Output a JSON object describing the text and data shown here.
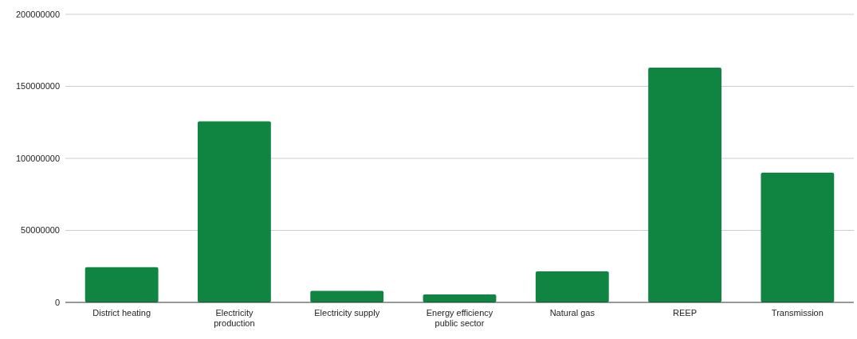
{
  "chart_data": {
    "type": "bar",
    "categories": [
      "District heating",
      "Electricity production",
      "Electricity supply",
      "Energy efficiency public sector",
      "Natural gas",
      "REEP",
      "Transmission"
    ],
    "values": [
      24500000,
      125700000,
      8000000,
      5500000,
      21500000,
      163000000,
      90000000
    ],
    "color": "#108542",
    "ylim": [
      0,
      200000000
    ],
    "yticks": [
      0,
      50000000,
      100000000,
      150000000,
      200000000
    ],
    "grid": "y"
  }
}
